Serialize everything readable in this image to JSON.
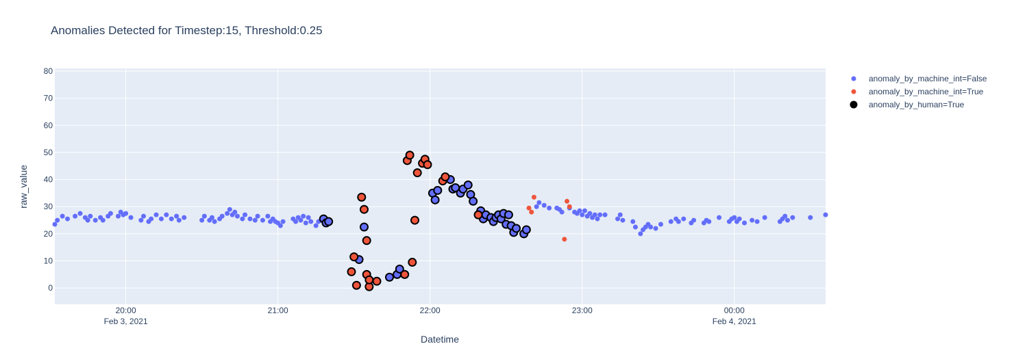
{
  "chart_data": {
    "type": "scatter",
    "title": "Anomalies Detected for Timestep:15, Threshold:0.25",
    "xlabel": "Datetime",
    "ylabel": "raw_value",
    "xlim": [
      "2021-02-03 19:32",
      "2021-02-04 00:36"
    ],
    "ylim": [
      -6,
      81
    ],
    "x_ticks": [
      {
        "value": "2021-02-03 20:00",
        "label": "20:00",
        "sublabel": "Feb 3, 2021"
      },
      {
        "value": "2021-02-03 21:00",
        "label": "21:00",
        "sublabel": ""
      },
      {
        "value": "2021-02-03 22:00",
        "label": "22:00",
        "sublabel": ""
      },
      {
        "value": "2021-02-03 23:00",
        "label": "23:00",
        "sublabel": ""
      },
      {
        "value": "2021-02-04 00:00",
        "label": "00:00",
        "sublabel": "Feb 4, 2021"
      }
    ],
    "y_ticks": [
      0,
      10,
      20,
      30,
      40,
      50,
      60,
      70,
      80
    ],
    "grid": true,
    "legend_position": "top-right",
    "background": "#e5ecf6",
    "series": [
      {
        "name": "anomaly_by_machine_int=False",
        "color": "#636efa",
        "marker": "small-circle",
        "points": [
          [
            "2021-02-03 19:32",
            23.5
          ],
          [
            "2021-02-03 19:33",
            25
          ],
          [
            "2021-02-03 19:35",
            26.5
          ],
          [
            "2021-02-03 19:37",
            25.5
          ],
          [
            "2021-02-03 19:40",
            26.5
          ],
          [
            "2021-02-03 19:42",
            27.5
          ],
          [
            "2021-02-03 19:44",
            26
          ],
          [
            "2021-02-03 19:45",
            25
          ],
          [
            "2021-02-03 19:46",
            26.5
          ],
          [
            "2021-02-03 19:48",
            25
          ],
          [
            "2021-02-03 19:50",
            26
          ],
          [
            "2021-02-03 19:51",
            25
          ],
          [
            "2021-02-03 19:53",
            26.5
          ],
          [
            "2021-02-03 19:54",
            27.5
          ],
          [
            "2021-02-03 19:57",
            26.5
          ],
          [
            "2021-02-03 19:58",
            28
          ],
          [
            "2021-02-03 19:59",
            27
          ],
          [
            "2021-02-03 20:00",
            27.5
          ],
          [
            "2021-02-03 20:02",
            26
          ],
          [
            "2021-02-03 20:06",
            25
          ],
          [
            "2021-02-03 20:07",
            26.5
          ],
          [
            "2021-02-03 20:09",
            24.5
          ],
          [
            "2021-02-03 20:10",
            25.5
          ],
          [
            "2021-02-03 20:12",
            27
          ],
          [
            "2021-02-03 20:14",
            25.5
          ],
          [
            "2021-02-03 20:16",
            27
          ],
          [
            "2021-02-03 20:18",
            25.5
          ],
          [
            "2021-02-03 20:20",
            26.5
          ],
          [
            "2021-02-03 20:21",
            25
          ],
          [
            "2021-02-03 20:23",
            26
          ],
          [
            "2021-02-03 20:30",
            25
          ],
          [
            "2021-02-03 20:31",
            26.5
          ],
          [
            "2021-02-03 20:33",
            25
          ],
          [
            "2021-02-03 20:34",
            26
          ],
          [
            "2021-02-03 20:35",
            24.5
          ],
          [
            "2021-02-03 20:37",
            25.5
          ],
          [
            "2021-02-03 20:38",
            26.5
          ],
          [
            "2021-02-03 20:40",
            27.5
          ],
          [
            "2021-02-03 20:41",
            29
          ],
          [
            "2021-02-03 20:42",
            27
          ],
          [
            "2021-02-03 20:43",
            28
          ],
          [
            "2021-02-03 20:44",
            26.5
          ],
          [
            "2021-02-03 20:46",
            25.5
          ],
          [
            "2021-02-03 20:47",
            27
          ],
          [
            "2021-02-03 20:49",
            25.5
          ],
          [
            "2021-02-03 20:51",
            25
          ],
          [
            "2021-02-03 20:52",
            26.5
          ],
          [
            "2021-02-03 20:54",
            25
          ],
          [
            "2021-02-03 20:56",
            26.5
          ],
          [
            "2021-02-03 20:57",
            24.5
          ],
          [
            "2021-02-03 20:58",
            25.5
          ],
          [
            "2021-02-03 20:59",
            24.5
          ],
          [
            "2021-02-03 21:00",
            24
          ],
          [
            "2021-02-03 21:01",
            23
          ],
          [
            "2021-02-03 21:02",
            24.5
          ],
          [
            "2021-02-03 21:06",
            25.5
          ],
          [
            "2021-02-03 21:07",
            24.5
          ],
          [
            "2021-02-03 21:08",
            26
          ],
          [
            "2021-02-03 21:09",
            25
          ],
          [
            "2021-02-03 21:10",
            26.5
          ],
          [
            "2021-02-03 21:11",
            24
          ],
          [
            "2021-02-03 21:12",
            26
          ],
          [
            "2021-02-03 21:13",
            24.5
          ],
          [
            "2021-02-03 21:15",
            23
          ],
          [
            "2021-02-03 21:16",
            24.5
          ],
          [
            "2021-02-03 21:18",
            25.5
          ],
          [
            "2021-02-03 21:19",
            24
          ],
          [
            "2021-02-03 21:20",
            24.5
          ],
          [
            "2021-02-03 21:32",
            10.5
          ],
          [
            "2021-02-03 21:34",
            22.5
          ],
          [
            "2021-02-03 21:44",
            4
          ],
          [
            "2021-02-03 21:47",
            5
          ],
          [
            "2021-02-03 21:48",
            7
          ],
          [
            "2021-02-03 22:01",
            35
          ],
          [
            "2021-02-03 22:02",
            32.5
          ],
          [
            "2021-02-03 22:03",
            36
          ],
          [
            "2021-02-03 22:08",
            40
          ],
          [
            "2021-02-03 22:09",
            36.5
          ],
          [
            "2021-02-03 22:10",
            37
          ],
          [
            "2021-02-03 22:12",
            35
          ],
          [
            "2021-02-03 22:13",
            36.5
          ],
          [
            "2021-02-03 22:15",
            38
          ],
          [
            "2021-02-03 22:16",
            34.5
          ],
          [
            "2021-02-03 22:17",
            32
          ],
          [
            "2021-02-03 22:20",
            28.5
          ],
          [
            "2021-02-03 22:21",
            25.5
          ],
          [
            "2021-02-03 22:22",
            27
          ],
          [
            "2021-02-03 22:24",
            26
          ],
          [
            "2021-02-03 22:25",
            24.5
          ],
          [
            "2021-02-03 22:26",
            26
          ],
          [
            "2021-02-03 22:27",
            27
          ],
          [
            "2021-02-03 22:28",
            25.5
          ],
          [
            "2021-02-03 22:29",
            27.5
          ],
          [
            "2021-02-03 22:30",
            23.5
          ],
          [
            "2021-02-03 22:31",
            27
          ],
          [
            "2021-02-03 22:32",
            23
          ],
          [
            "2021-02-03 22:33",
            20.5
          ],
          [
            "2021-02-03 22:34",
            22
          ],
          [
            "2021-02-03 22:37",
            20
          ],
          [
            "2021-02-03 22:38",
            21.5
          ],
          [
            "2021-02-03 22:42",
            30
          ],
          [
            "2021-02-03 22:43",
            31.5
          ],
          [
            "2021-02-03 22:45",
            30.5
          ],
          [
            "2021-02-03 22:47",
            29.5
          ],
          [
            "2021-02-03 22:50",
            29.5
          ],
          [
            "2021-02-03 22:51",
            29
          ],
          [
            "2021-02-03 22:52",
            28
          ],
          [
            "2021-02-03 22:55",
            29.5
          ],
          [
            "2021-02-03 22:57",
            28
          ],
          [
            "2021-02-03 22:58",
            27.5
          ],
          [
            "2021-02-03 22:59",
            28.5
          ],
          [
            "2021-02-03 23:00",
            27
          ],
          [
            "2021-02-03 23:01",
            28.5
          ],
          [
            "2021-02-03 23:02",
            26.5
          ],
          [
            "2021-02-03 23:03",
            27.5
          ],
          [
            "2021-02-03 23:04",
            26
          ],
          [
            "2021-02-03 23:05",
            27
          ],
          [
            "2021-02-03 23:06",
            25.5
          ],
          [
            "2021-02-03 23:07",
            27
          ],
          [
            "2021-02-03 23:09",
            27
          ],
          [
            "2021-02-03 23:14",
            25.5
          ],
          [
            "2021-02-03 23:15",
            27
          ],
          [
            "2021-02-03 23:16",
            25
          ],
          [
            "2021-02-03 23:20",
            24.5
          ],
          [
            "2021-02-03 23:21",
            22.5
          ],
          [
            "2021-02-03 23:23",
            20
          ],
          [
            "2021-02-03 23:24",
            21.5
          ],
          [
            "2021-02-03 23:25",
            22.5
          ],
          [
            "2021-02-03 23:26",
            23.5
          ],
          [
            "2021-02-03 23:27",
            22.5
          ],
          [
            "2021-02-03 23:29",
            22
          ],
          [
            "2021-02-03 23:31",
            23.5
          ],
          [
            "2021-02-03 23:35",
            24.5
          ],
          [
            "2021-02-03 23:37",
            25.5
          ],
          [
            "2021-02-03 23:38",
            24.5
          ],
          [
            "2021-02-03 23:40",
            25.5
          ],
          [
            "2021-02-03 23:43",
            24
          ],
          [
            "2021-02-03 23:44",
            25
          ],
          [
            "2021-02-03 23:48",
            24
          ],
          [
            "2021-02-03 23:49",
            25
          ],
          [
            "2021-02-03 23:50",
            24.5
          ],
          [
            "2021-02-03 23:54",
            26
          ],
          [
            "2021-02-03 23:58",
            24.5
          ],
          [
            "2021-02-03 23:59",
            25.5
          ],
          [
            "2021-02-04 00:00",
            26
          ],
          [
            "2021-02-04 00:01",
            24.5
          ],
          [
            "2021-02-04 00:02",
            25.5
          ],
          [
            "2021-02-04 00:04",
            24
          ],
          [
            "2021-02-04 00:07",
            25
          ],
          [
            "2021-02-04 00:09",
            24.5
          ],
          [
            "2021-02-04 00:12",
            26
          ],
          [
            "2021-02-04 00:18",
            24.5
          ],
          [
            "2021-02-04 00:19",
            25.5
          ],
          [
            "2021-02-04 00:20",
            26.5
          ],
          [
            "2021-02-04 00:21",
            25
          ],
          [
            "2021-02-04 00:23",
            26
          ],
          [
            "2021-02-04 00:30",
            26
          ],
          [
            "2021-02-04 00:36",
            27
          ]
        ]
      },
      {
        "name": "anomaly_by_machine_int=True",
        "color": "#ef553b",
        "marker": "small-circle",
        "points": [
          [
            "2021-02-03 21:36",
            0.5
          ],
          [
            "2021-02-03 21:35",
            17.5
          ],
          [
            "2021-02-03 21:29",
            6
          ],
          [
            "2021-02-03 21:30",
            11.5
          ],
          [
            "2021-02-03 21:31",
            1
          ],
          [
            "2021-02-03 21:33",
            33.5
          ],
          [
            "2021-02-03 21:34",
            29
          ],
          [
            "2021-02-03 21:35",
            5
          ],
          [
            "2021-02-03 21:36",
            3
          ],
          [
            "2021-02-03 21:39",
            2.5
          ],
          [
            "2021-02-03 21:50",
            5
          ],
          [
            "2021-02-03 21:53",
            9.5
          ],
          [
            "2021-02-03 21:54",
            25
          ],
          [
            "2021-02-03 21:55",
            42.5
          ],
          [
            "2021-02-03 21:51",
            47
          ],
          [
            "2021-02-03 21:52",
            49
          ],
          [
            "2021-02-03 21:57",
            46
          ],
          [
            "2021-02-03 21:58",
            47.5
          ],
          [
            "2021-02-03 21:59",
            45.5
          ],
          [
            "2021-02-03 22:05",
            39.5
          ],
          [
            "2021-02-03 22:06",
            41
          ],
          [
            "2021-02-03 22:19",
            27
          ],
          [
            "2021-02-03 22:39",
            29.5
          ],
          [
            "2021-02-03 22:40",
            28
          ],
          [
            "2021-02-03 22:41",
            33.5
          ],
          [
            "2021-02-03 22:53",
            18
          ],
          [
            "2021-02-03 22:54",
            32
          ],
          [
            "2021-02-03 22:55",
            30
          ]
        ]
      },
      {
        "name": "anomaly_by_human=True",
        "color": "#000000",
        "marker": "large-outlined-circle",
        "points": []
      }
    ],
    "human_anomaly_ranges": [
      [
        "2021-02-03 21:18",
        "2021-02-03 21:39"
      ],
      [
        "2021-02-03 21:44",
        "2021-02-03 22:38"
      ]
    ]
  }
}
